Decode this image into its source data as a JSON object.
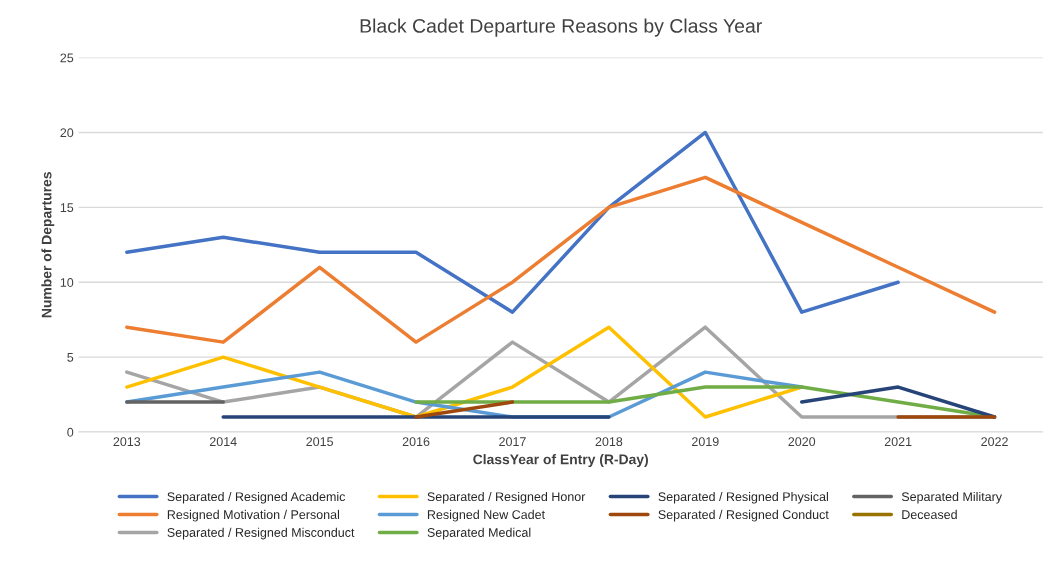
{
  "chart_data": {
    "type": "line",
    "title": "Black Cadet Departure Reasons by Class Year",
    "xlabel": "ClassYear of Entry (R-Day)",
    "ylabel": "Number of Departures",
    "categories": [
      "2013",
      "2014",
      "2015",
      "2016",
      "2017",
      "2018",
      "2019",
      "2020",
      "2021",
      "2022"
    ],
    "ylim": [
      0,
      25
    ],
    "yticks": [
      0,
      5,
      10,
      15,
      20,
      25
    ],
    "grid": "y",
    "legend": "bottom",
    "marker": "none",
    "line_style": "solid",
    "series": [
      {
        "name": "Separated / Resigned Academic",
        "color": "#4472c4",
        "values": [
          12,
          13,
          12,
          12,
          8,
          15,
          20,
          8,
          10,
          null
        ]
      },
      {
        "name": "Resigned Motivation / Personal",
        "color": "#ed7d31",
        "values": [
          7,
          6,
          11,
          6,
          10,
          15,
          17,
          14,
          11,
          8
        ]
      },
      {
        "name": "Separated / Resigned Misconduct",
        "color": "#a5a5a5",
        "values": [
          4,
          2,
          3,
          1,
          6,
          2,
          7,
          1,
          1,
          1
        ]
      },
      {
        "name": "Separated / Resigned Honor",
        "color": "#ffc000",
        "values": [
          3,
          5,
          3,
          1,
          3,
          7,
          1,
          3,
          null,
          null
        ]
      },
      {
        "name": "Resigned New Cadet",
        "color": "#5b9bd5",
        "values": [
          2,
          3,
          4,
          2,
          1,
          1,
          4,
          3,
          null,
          null
        ]
      },
      {
        "name": "Separated Medical",
        "color": "#70ad47",
        "values": [
          null,
          null,
          null,
          2,
          2,
          2,
          3,
          3,
          2,
          1
        ]
      },
      {
        "name": "Separated / Resigned Physical",
        "color": "#264478",
        "values": [
          null,
          1,
          1,
          1,
          1,
          1,
          null,
          2,
          3,
          1
        ]
      },
      {
        "name": "Separated / Resigned Conduct",
        "color": "#9e480e",
        "values": [
          null,
          null,
          null,
          1,
          2,
          null,
          null,
          null,
          1,
          1
        ]
      },
      {
        "name": "Separated Military",
        "color": "#636363",
        "values": [
          2,
          2,
          null,
          null,
          null,
          null,
          null,
          null,
          null,
          null
        ]
      },
      {
        "name": "Deceased",
        "color": "#997300",
        "values": [
          null,
          null,
          null,
          null,
          null,
          null,
          null,
          null,
          null,
          null
        ]
      }
    ]
  }
}
